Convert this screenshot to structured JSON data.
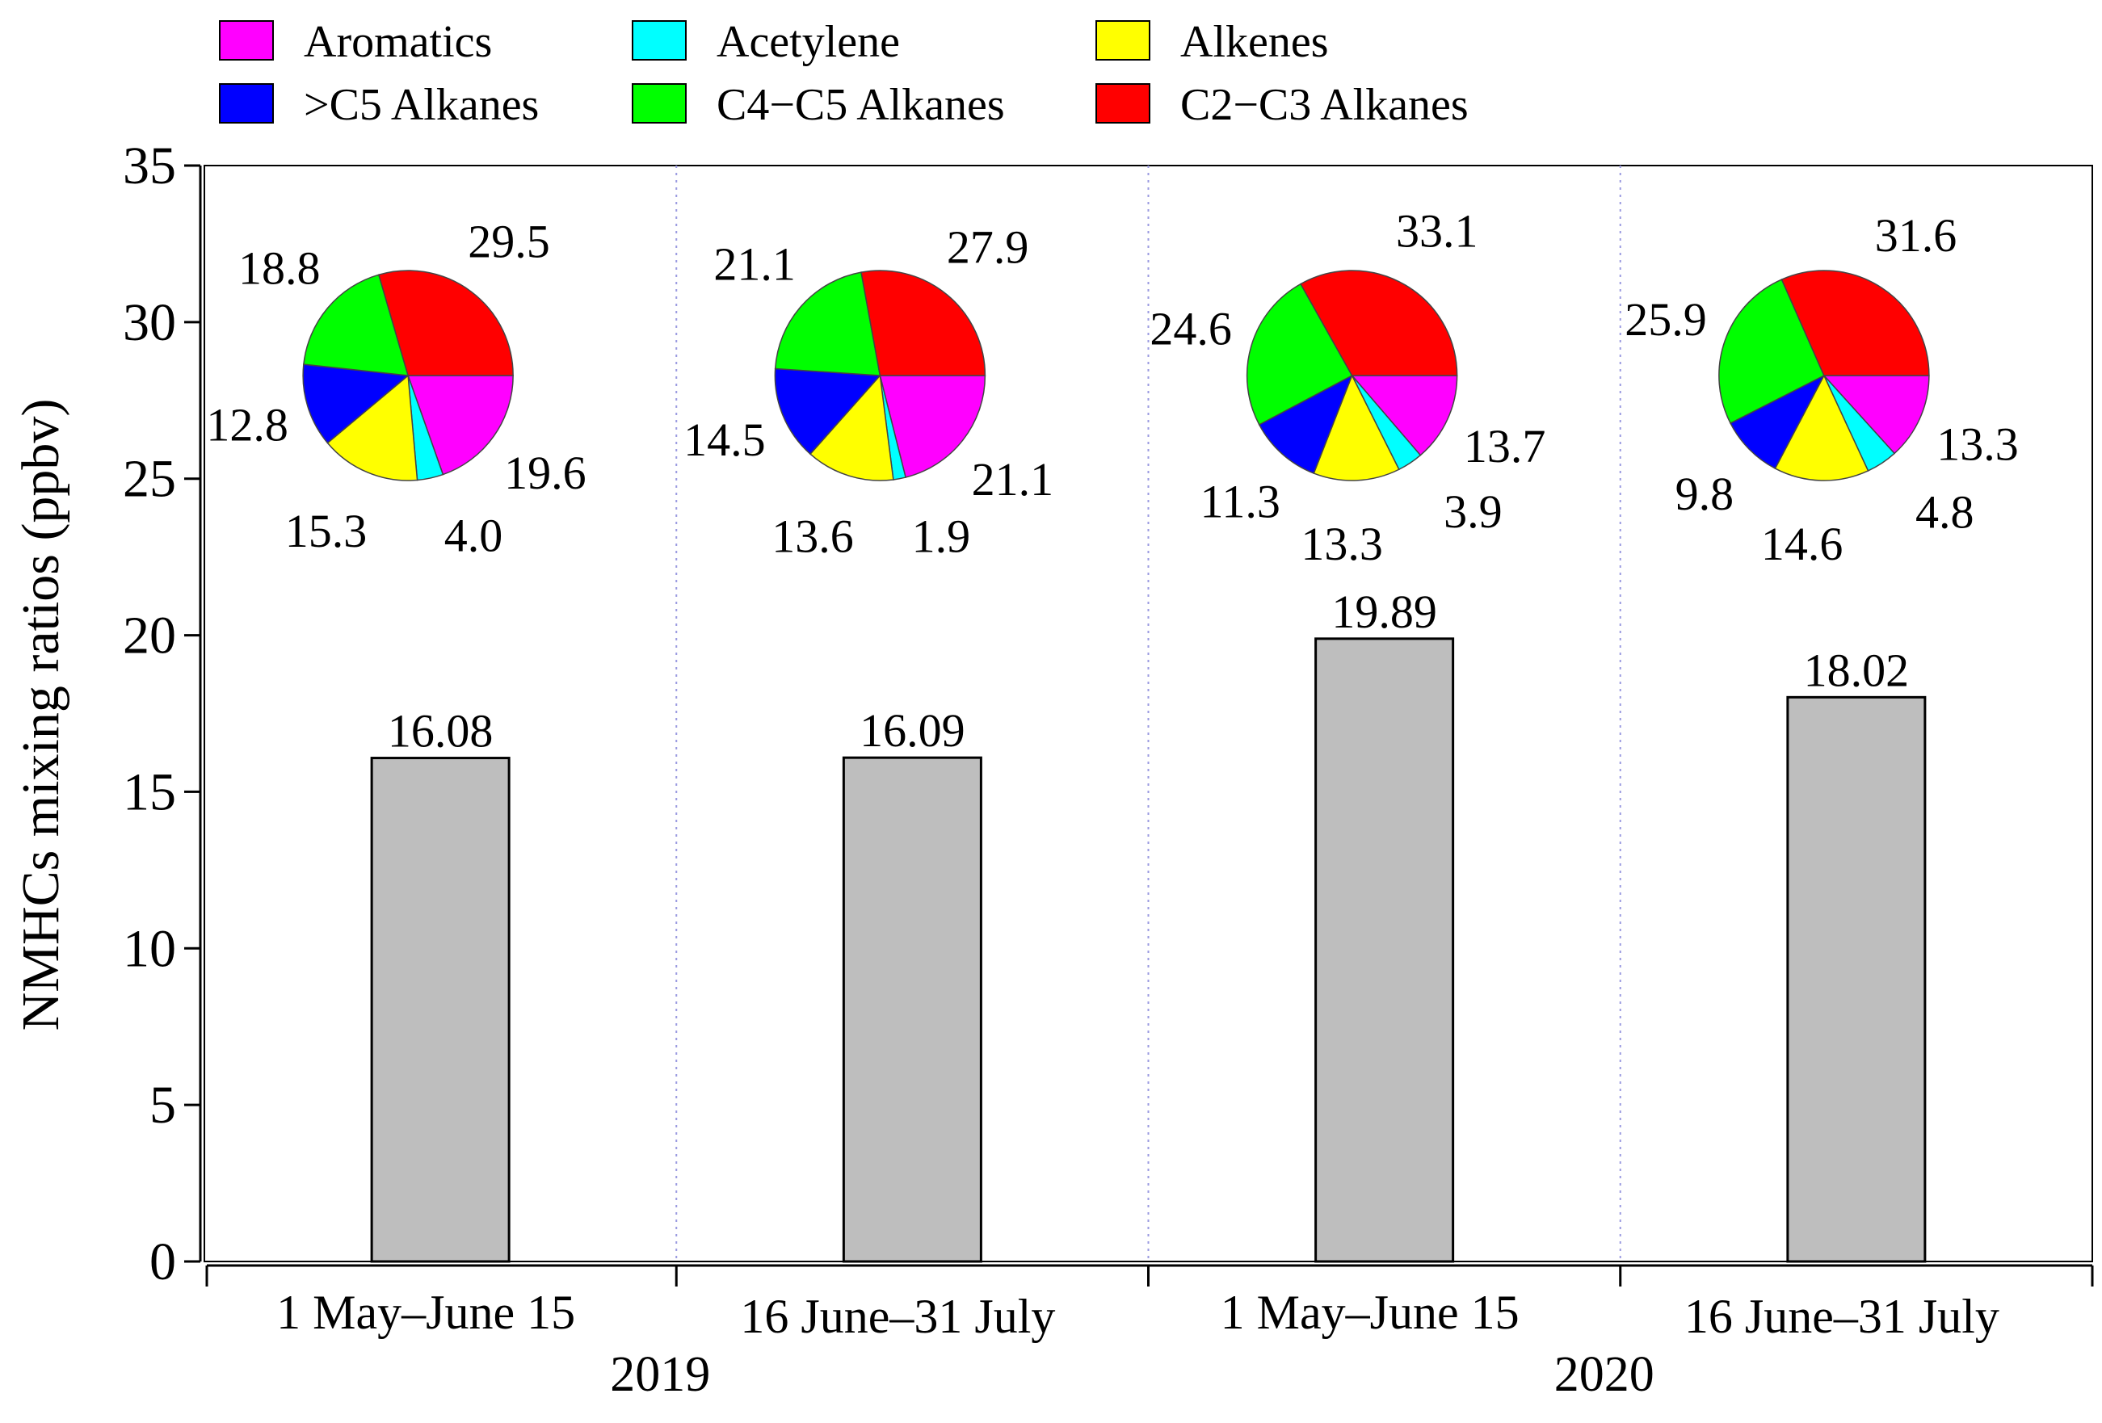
{
  "chart_data": {
    "type": "bar",
    "ylabel": "NMHCs mixing ratios (ppbv)",
    "ylim": [
      0,
      35
    ],
    "yticks": [
      0,
      5,
      10,
      15,
      20,
      25,
      30,
      35
    ],
    "categories": [
      "1 May–June 15",
      "16 June–31 July",
      "1 May–June 15",
      "16 June–31 July"
    ],
    "years": [
      "2019",
      "2020"
    ],
    "values": [
      16.08,
      16.09,
      19.89,
      18.02
    ],
    "value_labels": [
      "16.08",
      "16.09",
      "19.89",
      "18.02"
    ],
    "bar_color": "#BEBEBE",
    "legend": [
      {
        "name": "Aromatics",
        "color": "#FF00FF"
      },
      {
        "name": "Acetylene",
        "color": "#00FFFF"
      },
      {
        "name": "Alkenes",
        "color": "#FFFF00"
      },
      {
        "name": ">C5 Alkanes",
        "color": "#0000FF"
      },
      {
        "name": "C4−C5 Alkanes",
        "color": "#00FF00"
      },
      {
        "name": "C2−C3 Alkanes",
        "color": "#FF0000"
      }
    ],
    "pies": [
      {
        "slices": [
          19.6,
          4.0,
          15.3,
          12.8,
          18.8,
          29.5
        ],
        "labels": [
          "19.6",
          "4.0",
          "15.3",
          "12.8",
          "18.8",
          "29.5"
        ]
      },
      {
        "slices": [
          21.1,
          1.9,
          13.6,
          14.5,
          21.1,
          27.9
        ],
        "labels": [
          "21.1",
          "1.9",
          "13.6",
          "14.5",
          "21.1",
          "27.9"
        ]
      },
      {
        "slices": [
          13.7,
          3.9,
          13.3,
          11.3,
          24.6,
          33.1
        ],
        "labels": [
          "13.7",
          "3.9",
          "13.3",
          "11.3",
          "24.6",
          "33.1"
        ]
      },
      {
        "slices": [
          13.3,
          4.8,
          14.6,
          9.8,
          25.9,
          31.6
        ],
        "labels": [
          "13.3",
          "4.8",
          "14.6",
          "9.8",
          "25.9",
          "31.6"
        ]
      }
    ]
  }
}
